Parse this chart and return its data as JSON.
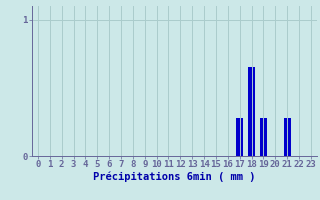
{
  "hours": [
    0,
    1,
    2,
    3,
    4,
    5,
    6,
    7,
    8,
    9,
    10,
    11,
    12,
    13,
    14,
    15,
    16,
    17,
    18,
    19,
    20,
    21,
    22,
    23
  ],
  "values": [
    0,
    0,
    0,
    0,
    0,
    0,
    0,
    0,
    0,
    0,
    0,
    0,
    0,
    0,
    0,
    0,
    0,
    0.28,
    0.65,
    0.28,
    0,
    0.28,
    0,
    0
  ],
  "bar_color": "#0000cc",
  "bg_color": "#cce8e8",
  "grid_color": "#aacccc",
  "axis_color": "#666699",
  "label_color": "#0000aa",
  "xlabel": "Précipitations 6min ( mm )",
  "ylim": [
    0,
    1.1
  ],
  "yticks": [
    0,
    1
  ],
  "xlim": [
    -0.5,
    23.5
  ],
  "xlabel_fontsize": 7.5,
  "tick_fontsize": 6.5
}
